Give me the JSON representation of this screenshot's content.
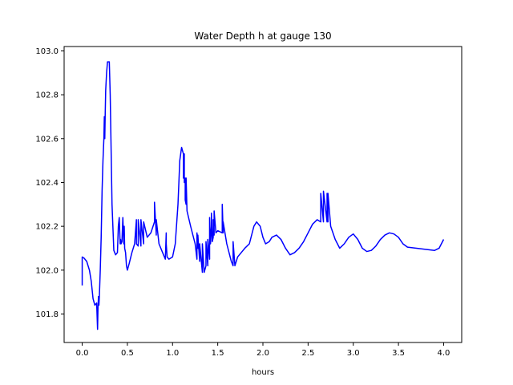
{
  "chart_data": {
    "type": "line",
    "title": "Water Depth h at gauge 130",
    "xlabel": "hours",
    "ylabel": "",
    "xlim": [
      -0.2,
      4.2
    ],
    "ylim": [
      101.67,
      103.02
    ],
    "xticks": [
      0.0,
      0.5,
      1.0,
      1.5,
      2.0,
      2.5,
      3.0,
      3.5,
      4.0
    ],
    "xtick_labels": [
      "0.0",
      "0.5",
      "1.0",
      "1.5",
      "2.0",
      "2.5",
      "3.0",
      "3.5",
      "4.0"
    ],
    "yticks": [
      101.8,
      102.0,
      102.2,
      102.4,
      102.6,
      102.8,
      103.0
    ],
    "ytick_labels": [
      "101.8",
      "102.0",
      "102.2",
      "102.4",
      "102.6",
      "102.8",
      "103.0"
    ],
    "grid": false,
    "series": [
      {
        "color": "#0000ff",
        "x": [
          0.0,
          0.0,
          0.02,
          0.05,
          0.08,
          0.1,
          0.12,
          0.14,
          0.16,
          0.17,
          0.175,
          0.18,
          0.185,
          0.19,
          0.2,
          0.21,
          0.22,
          0.23,
          0.24,
          0.245,
          0.25,
          0.255,
          0.26,
          0.27,
          0.28,
          0.3,
          0.31,
          0.32,
          0.33,
          0.35,
          0.37,
          0.39,
          0.4,
          0.41,
          0.42,
          0.425,
          0.43,
          0.44,
          0.45,
          0.46,
          0.465,
          0.47,
          0.48,
          0.49,
          0.5,
          0.52,
          0.55,
          0.58,
          0.6,
          0.6,
          0.62,
          0.62,
          0.65,
          0.65,
          0.68,
          0.68,
          0.72,
          0.76,
          0.8,
          0.8,
          0.82,
          0.82,
          0.85,
          0.9,
          0.92,
          0.93,
          0.93,
          0.94,
          0.96,
          1.0,
          1.03,
          1.06,
          1.08,
          1.1,
          1.12,
          1.12,
          1.13,
          1.13,
          1.14,
          1.14,
          1.15,
          1.15,
          1.16,
          1.2,
          1.25,
          1.27,
          1.27,
          1.28,
          1.28,
          1.3,
          1.3,
          1.33,
          1.33,
          1.35,
          1.37,
          1.37,
          1.39,
          1.39,
          1.41,
          1.41,
          1.42,
          1.43,
          1.43,
          1.44,
          1.45,
          1.45,
          1.46,
          1.46,
          1.48,
          1.5,
          1.55,
          1.55,
          1.56,
          1.56,
          1.6,
          1.65,
          1.67,
          1.67,
          1.69,
          1.72,
          1.76,
          1.8,
          1.85,
          1.9,
          1.93,
          1.97,
          2.0,
          2.03,
          2.07,
          2.1,
          2.15,
          2.2,
          2.25,
          2.3,
          2.35,
          2.4,
          2.45,
          2.5,
          2.55,
          2.6,
          2.64,
          2.64,
          2.67,
          2.67,
          2.71,
          2.71,
          2.72,
          2.72,
          2.75,
          2.8,
          2.85,
          2.9,
          2.95,
          3.0,
          3.05,
          3.1,
          3.15,
          3.2,
          3.25,
          3.3,
          3.35,
          3.4,
          3.45,
          3.5,
          3.55,
          3.6,
          3.7,
          3.8,
          3.9,
          3.95,
          4.0
        ],
        "y": [
          101.93,
          102.06,
          102.055,
          102.04,
          102.0,
          101.95,
          101.87,
          101.84,
          101.85,
          101.73,
          101.83,
          101.88,
          101.84,
          101.88,
          102.0,
          102.15,
          102.36,
          102.5,
          102.6,
          102.7,
          102.6,
          102.72,
          102.82,
          102.9,
          102.95,
          102.95,
          102.8,
          102.55,
          102.3,
          102.09,
          102.07,
          102.08,
          102.2,
          102.24,
          102.12,
          102.14,
          102.12,
          102.13,
          102.24,
          102.12,
          102.2,
          102.1,
          102.08,
          102.02,
          102.0,
          102.03,
          102.08,
          102.12,
          102.23,
          102.12,
          102.11,
          102.23,
          102.11,
          102.23,
          102.12,
          102.22,
          102.15,
          102.17,
          102.22,
          102.31,
          102.16,
          102.23,
          102.12,
          102.07,
          102.05,
          102.17,
          102.12,
          102.06,
          102.05,
          102.06,
          102.12,
          102.3,
          102.5,
          102.56,
          102.53,
          102.42,
          102.53,
          102.4,
          102.42,
          102.32,
          102.3,
          102.42,
          102.27,
          102.2,
          102.12,
          102.05,
          102.17,
          102.1,
          102.16,
          102.04,
          102.12,
          101.99,
          102.12,
          101.99,
          102.02,
          102.13,
          102.02,
          102.14,
          102.05,
          102.24,
          102.12,
          102.2,
          102.26,
          102.13,
          102.15,
          102.23,
          102.16,
          102.27,
          102.17,
          102.18,
          102.17,
          102.3,
          102.17,
          102.22,
          102.12,
          102.04,
          102.02,
          102.13,
          102.02,
          102.06,
          102.08,
          102.1,
          102.12,
          102.2,
          102.22,
          102.2,
          102.15,
          102.12,
          102.13,
          102.15,
          102.16,
          102.14,
          102.1,
          102.07,
          102.08,
          102.1,
          102.13,
          102.17,
          102.21,
          102.23,
          102.22,
          102.35,
          102.22,
          102.36,
          102.22,
          102.35,
          102.22,
          102.35,
          102.2,
          102.14,
          102.1,
          102.12,
          102.15,
          102.165,
          102.14,
          102.1,
          102.085,
          102.09,
          102.11,
          102.14,
          102.16,
          102.17,
          102.165,
          102.15,
          102.12,
          102.105,
          102.1,
          102.095,
          102.09,
          102.1,
          102.14
        ]
      }
    ]
  }
}
